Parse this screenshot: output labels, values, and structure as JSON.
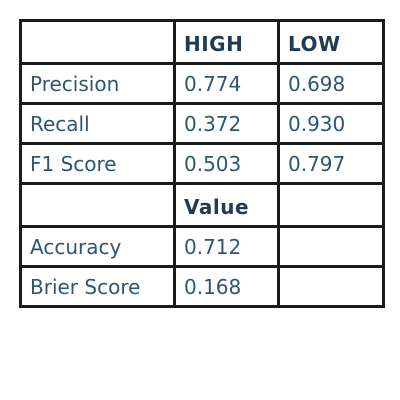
{
  "chart_data": {
    "type": "table",
    "tables": [
      {
        "columns": [
          "",
          "HIGH",
          "LOW"
        ],
        "rows": [
          {
            "label": "Precision",
            "values": [
              "0.774",
              "0.698"
            ]
          },
          {
            "label": "Recall",
            "values": [
              "0.372",
              "0.930"
            ]
          },
          {
            "label": "F1 Score",
            "values": [
              "0.503",
              "0.797"
            ]
          }
        ]
      },
      {
        "columns": [
          "",
          "Value",
          ""
        ],
        "rows": [
          {
            "label": "Accuracy",
            "values": [
              "0.712",
              ""
            ]
          },
          {
            "label": "Brier Score",
            "values": [
              "0.168",
              ""
            ]
          }
        ]
      }
    ]
  },
  "colors": {
    "text": "#2e5673",
    "header_text": "#1f3b56",
    "border": "#1a1a1a"
  }
}
